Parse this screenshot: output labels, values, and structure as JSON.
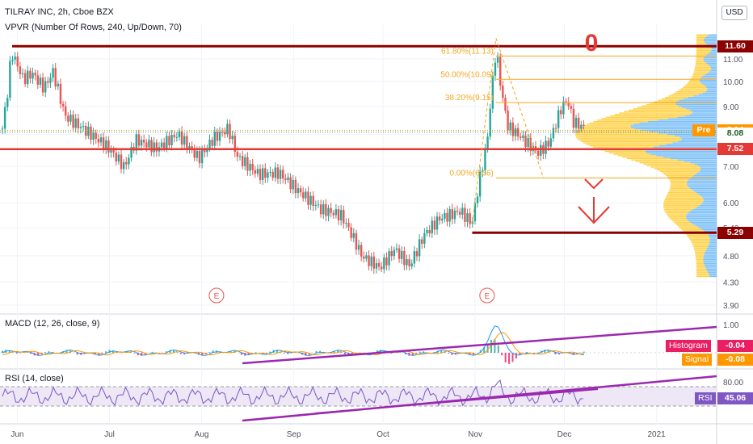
{
  "header": {
    "symbol_line": "TILRAY INC, 2h, Cboe BZX",
    "vpvr_line": "VPVR (Number Of Rows, 240, Up/Down, 70)",
    "currency_button": "USD"
  },
  "colors": {
    "up": "#26a69a",
    "down": "#ef5350",
    "level": "#8b0000",
    "support": "#e53935",
    "fib": "#f5a623",
    "macd": "#2196f3",
    "signal": "#ff9800",
    "rsi": "#7e57c2",
    "trend": "#9c27b0"
  },
  "chart_data": [
    {
      "type": "candlestick",
      "title": "TILRAY INC, 2h, Cboe BZX",
      "x_ticks": [
        "Jun",
        "Jul",
        "Aug",
        "Sep",
        "Oct",
        "Nov",
        "Dec",
        "2021"
      ],
      "y_ticks": [
        "11.00",
        "10.00",
        "9.00",
        "8.00",
        "7.00",
        "6.00",
        "5.40",
        "4.80",
        "4.30",
        "3.90"
      ],
      "ylim": [
        3.9,
        12.3
      ],
      "y_scale": "log",
      "price_path": [
        [
          "May 26",
          8.2
        ],
        [
          "May 28",
          9.8
        ],
        [
          "May 29",
          11.4
        ],
        [
          "Jun 2",
          10.2
        ],
        [
          "Jun 5",
          10.5
        ],
        [
          "Jun 9",
          9.9
        ],
        [
          "Jun 12",
          10.6
        ],
        [
          "Jun 16",
          8.8
        ],
        [
          "Jun 22",
          8.3
        ],
        [
          "Jun 30",
          7.6
        ],
        [
          "Jul 6",
          6.9
        ],
        [
          "Jul 10",
          7.7
        ],
        [
          "Jul 17",
          7.4
        ],
        [
          "Jul 24",
          7.9
        ],
        [
          "Jul 31",
          7.2
        ],
        [
          "Aug 5",
          7.9
        ],
        [
          "Aug 10",
          8.3
        ],
        [
          "Aug 13",
          7.4
        ],
        [
          "Aug 20",
          6.9
        ],
        [
          "Aug 27",
          6.9
        ],
        [
          "Sep 3",
          6.3
        ],
        [
          "Sep 10",
          5.8
        ],
        [
          "Sep 17",
          5.6
        ],
        [
          "Sep 24",
          4.7
        ],
        [
          "Sep 30",
          4.5
        ],
        [
          "Oct 5",
          4.9
        ],
        [
          "Oct 10",
          4.6
        ],
        [
          "Oct 15",
          5.3
        ],
        [
          "Oct 20",
          5.7
        ],
        [
          "Oct 27",
          5.9
        ],
        [
          "Oct 31",
          5.6
        ],
        [
          "Nov 5",
          7.8
        ],
        [
          "Nov 8",
          11.5
        ],
        [
          "Nov 10",
          9.5
        ],
        [
          "Nov 12",
          8.3
        ],
        [
          "Nov 17",
          7.8
        ],
        [
          "Nov 22",
          7.3
        ],
        [
          "Nov 26",
          7.6
        ],
        [
          "Nov 30",
          8.8
        ],
        [
          "Dec 2",
          9.1
        ],
        [
          "Dec 4",
          8.3
        ],
        [
          "Dec 8",
          8.1
        ]
      ],
      "earnings_markers": [
        {
          "date": "Aug 6",
          "label": "E"
        },
        {
          "date": "Nov 5",
          "label": "E"
        }
      ],
      "levels": [
        {
          "name": "resistance",
          "value": 11.6,
          "label": "11.60",
          "color": "#8b0000"
        },
        {
          "name": "support",
          "value": 7.52,
          "label": "7.52",
          "color": "#e53935"
        },
        {
          "name": "target",
          "value": 5.29,
          "label": "5.29",
          "color": "#8b0000"
        }
      ],
      "price_tags": [
        {
          "name": "pre-market",
          "value": 8.14,
          "label": "8.14",
          "prefix": "Pre",
          "color": "#ff9800"
        },
        {
          "name": "last",
          "value": 8.08,
          "label": "8.08",
          "color": "#1b5e20",
          "text_color": "#1b5e20"
        }
      ],
      "fibonacci": {
        "color": "#f5a623",
        "levels": [
          {
            "ratio": "61.80%",
            "value": 11.13,
            "label": "61.80%(11.13)"
          },
          {
            "ratio": "50.00%",
            "value": 10.09,
            "label": "50.00%(10.09)"
          },
          {
            "ratio": "38.20%",
            "value": 9.15,
            "label": "38.20%(9.15)"
          },
          {
            "ratio": "0.00%",
            "value": 6.66,
            "label": "0.00%(6.66)"
          }
        ]
      },
      "volume_profile": {
        "title": "VPVR (Number Of Rows, 240, Up/Down, 70)",
        "up_color": "#64b5f6",
        "down_color": "#ffca28",
        "point_of_control": 8.0
      },
      "annotations": [
        {
          "name": "zero-mark",
          "text": "0",
          "color": "#e53935"
        },
        {
          "name": "down-arrow",
          "text": "↓",
          "color": "#e53935"
        }
      ]
    },
    {
      "type": "line",
      "title": "MACD (12, 26, close, 9)",
      "ylim": [
        -0.4,
        1.2
      ],
      "y_ticks": [
        "1.00"
      ],
      "series": [
        {
          "name": "MACD",
          "color": "#2196f3"
        },
        {
          "name": "Signal",
          "color": "#ff9800",
          "value": -0.08,
          "label": "-0.08"
        },
        {
          "name": "Histogram",
          "color": "#e91e63",
          "value": -0.04,
          "label": "-0.04"
        }
      ],
      "peak": {
        "date": "Nov 8",
        "value": 0.95
      }
    },
    {
      "type": "line",
      "title": "RSI (14, close)",
      "ylim": [
        0,
        100
      ],
      "y_ticks": [
        "80.00"
      ],
      "band": [
        30,
        70
      ],
      "series": [
        {
          "name": "RSI",
          "color": "#7e57c2",
          "value": 45.06,
          "label": "45.06"
        }
      ]
    }
  ]
}
